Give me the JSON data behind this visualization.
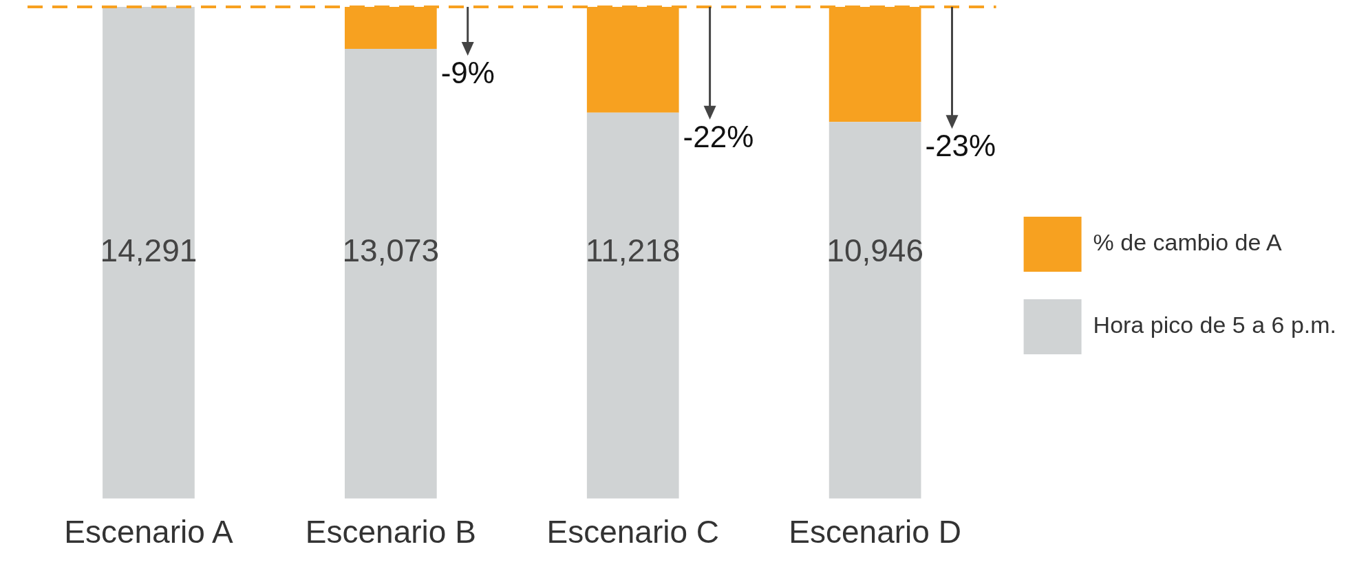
{
  "chart_data": {
    "type": "bar",
    "stacked": true,
    "categories": [
      "Escenario A",
      "Escenario B",
      "Escenario C",
      "Escenario D"
    ],
    "series": [
      {
        "name": "Hora pico de 5 a 6 p.m.",
        "color": "#d0d3d4",
        "values": [
          14291,
          13073,
          11218,
          10946
        ],
        "value_labels": [
          "14,291",
          "13,073",
          "11,218",
          "10,946"
        ]
      },
      {
        "name": "% de cambio de A",
        "color": "#f7a120",
        "values": [
          0,
          1218,
          3073,
          3345
        ]
      }
    ],
    "ref_lines": [
      {
        "axis": "y",
        "value": 14291,
        "color": "#f7a120",
        "line_style": "dashed"
      }
    ],
    "annotations": [
      {
        "text": "-9%",
        "x": "Escenario B",
        "y": 13073
      },
      {
        "text": "-22%",
        "x": "Escenario C",
        "y": 11218
      },
      {
        "text": "-23%",
        "x": "Escenario D",
        "y": 10946
      }
    ],
    "legend": "right",
    "grid": false
  }
}
